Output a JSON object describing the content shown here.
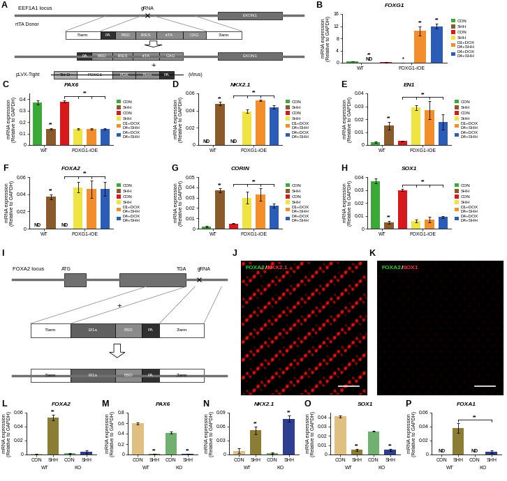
{
  "chart_data": [
    {
      "type": "bar",
      "panel": "B",
      "title": "FOXG1",
      "y_label": "mRNA expression\n(Relative to GAPDH)",
      "categories": [
        "CON",
        "SHH",
        "CON",
        "SHH",
        "D1+DOX\nD4+SHH",
        "D4+DOX\nD4+SHH"
      ],
      "colors": [
        "#3aa935",
        "#8b5a2b",
        "#d7191c",
        "#f0e442",
        "#f28e2b",
        "#2b5cb8"
      ],
      "values": [
        0.38,
        null,
        0.12,
        0.05,
        10.5,
        12.0
      ],
      "errors": [
        0.01,
        null,
        0.02,
        0.01,
        1.5,
        0.8
      ],
      "marks": [
        null,
        [
          "**",
          "ND"
        ],
        null,
        [
          "*"
        ],
        [
          "**"
        ],
        [
          "**"
        ]
      ],
      "groups": [
        {
          "label": "WT",
          "count": 2
        },
        {
          "label": "FOXG1-iOE",
          "count": 4
        }
      ],
      "brackets": [],
      "ylim": [
        0,
        16
      ],
      "yticks": [
        0,
        4,
        8,
        12,
        16
      ],
      "legend": "center left"
    },
    {
      "type": "bar",
      "panel": "C",
      "title": "PAX6",
      "y_label": "mRNA expression\n(Relative to GAPDH)",
      "categories": [
        "CON",
        "SHH",
        "CON",
        "SHH",
        "D1+DOX\nD4+SHH",
        "D4+DOX\nD4+SHH"
      ],
      "colors": [
        "#3aa935",
        "#8b5a2b",
        "#d7191c",
        "#f0e442",
        "#f28e2b",
        "#2b5cb8"
      ],
      "values": [
        0.37,
        0.14,
        0.38,
        0.14,
        0.14,
        0.14
      ],
      "errors": [
        0.02,
        0.005,
        0.01,
        0.004,
        0.006,
        0.004
      ],
      "marks": [
        null,
        [
          "**"
        ],
        null,
        null,
        null,
        null
      ],
      "groups": [
        {
          "label": "WT",
          "count": 2
        },
        {
          "label": "FOXG1-iOE",
          "count": 4
        }
      ],
      "brackets": [
        {
          "from": 2,
          "to": [
            3,
            4,
            5
          ],
          "text": "**"
        }
      ],
      "ylim": [
        0,
        0.45
      ],
      "yticks": [
        0,
        0.1,
        0.2,
        0.3,
        0.4
      ],
      "legend": "center left"
    },
    {
      "type": "bar",
      "panel": "D",
      "title": "NKX2.1",
      "y_label": "mRNA expression\n(Relative to GAPDH)",
      "categories": [
        "CON",
        "SHH",
        "CON",
        "SHH",
        "D1+DOX\nD4+SHH",
        "D4+DOX\nD4+SHH"
      ],
      "colors": [
        "#3aa935",
        "#8b5a2b",
        "#d7191c",
        "#f0e442",
        "#f28e2b",
        "#2b5cb8"
      ],
      "values": [
        null,
        0.048,
        null,
        0.039,
        0.052,
        0.044
      ],
      "errors": [
        null,
        0.002,
        null,
        0.002,
        0.001,
        0.002
      ],
      "marks": [
        [
          "ND"
        ],
        [
          "**"
        ],
        [
          "ND"
        ],
        null,
        null,
        null
      ],
      "groups": [
        {
          "label": "WT",
          "count": 2
        },
        {
          "label": "FOXG1-iOE",
          "count": 4
        }
      ],
      "brackets": [
        {
          "from": 2,
          "to": [
            3,
            4,
            5
          ],
          "text": "**"
        }
      ],
      "ylim": [
        0,
        0.06
      ],
      "yticks": [
        0,
        0.02,
        0.04,
        0.06
      ],
      "legend": "center left"
    },
    {
      "type": "bar",
      "panel": "E",
      "title": "EN1",
      "y_label": "mRNA expression\n(Relative to GAPDH)",
      "categories": [
        "CON",
        "SHH",
        "CON",
        "SHH",
        "D1+DOX\nD4+SHH",
        "D4+DOX\nD4+SHH"
      ],
      "colors": [
        "#3aa935",
        "#8b5a2b",
        "#d7191c",
        "#f0e442",
        "#f28e2b",
        "#2b5cb8"
      ],
      "values": [
        0.002,
        0.015,
        0.003,
        0.029,
        0.027,
        0.018
      ],
      "errors": [
        0.0005,
        0.003,
        0.0005,
        0.002,
        0.007,
        0.006
      ],
      "marks": [
        null,
        [
          "**"
        ],
        null,
        null,
        null,
        null
      ],
      "groups": [
        {
          "label": "WT",
          "count": 2
        },
        {
          "label": "FOXG1-iOE",
          "count": 4
        }
      ],
      "brackets": [
        {
          "from": 2,
          "to": [
            3,
            4,
            5
          ],
          "text": "**"
        }
      ],
      "ylim": [
        0,
        0.04
      ],
      "yticks": [
        0,
        0.01,
        0.02,
        0.03,
        0.04
      ],
      "legend": "center left"
    },
    {
      "type": "bar",
      "panel": "F",
      "title": "FOXA2",
      "y_label": "mRNA expression\n(Relative to GAPDH)",
      "categories": [
        "CON",
        "SHH",
        "CON",
        "SHH",
        "D1+DOX\nD4+SHH",
        "D4+DOX\nD4+SHH"
      ],
      "colors": [
        "#3aa935",
        "#8b5a2b",
        "#d7191c",
        "#f0e442",
        "#f28e2b",
        "#2b5cb8"
      ],
      "values": [
        null,
        0.037,
        null,
        0.048,
        0.046,
        0.046
      ],
      "errors": [
        null,
        0.003,
        null,
        0.006,
        0.01,
        0.008
      ],
      "marks": [
        [
          "ND"
        ],
        [
          "**"
        ],
        [
          "ND"
        ],
        null,
        null,
        null
      ],
      "groups": [
        {
          "label": "WT",
          "count": 2
        },
        {
          "label": "FOXG1-iOE",
          "count": 4
        }
      ],
      "brackets": [
        {
          "from": 2,
          "to": [
            3,
            4,
            5
          ],
          "text": "**"
        }
      ],
      "ylim": [
        0,
        0.06
      ],
      "yticks": [
        0,
        0.02,
        0.04,
        0.06
      ],
      "legend": "center left"
    },
    {
      "type": "bar",
      "panel": "G",
      "title": "CORIN",
      "y_label": "mRNA expression\n(Relative to GAPDH)",
      "categories": [
        "CON",
        "SHH",
        "CON",
        "SHH",
        "D1+DOX\nD4+SHH",
        "D4+DOX\nD4+SHH"
      ],
      "colors": [
        "#3aa935",
        "#8b5a2b",
        "#d7191c",
        "#f0e442",
        "#f28e2b",
        "#2b5cb8"
      ],
      "values": [
        0.002,
        0.037,
        0.005,
        0.03,
        0.033,
        0.022
      ],
      "errors": [
        0.0005,
        0.002,
        0.0003,
        0.006,
        0.006,
        0.002
      ],
      "marks": [
        null,
        [
          "**"
        ],
        null,
        null,
        null,
        null
      ],
      "groups": [
        {
          "label": "WT",
          "count": 2
        },
        {
          "label": "FOXG1-iOE",
          "count": 4
        }
      ],
      "brackets": [
        {
          "from": 2,
          "to": [
            3,
            4,
            5
          ],
          "text": "**"
        }
      ],
      "ylim": [
        0,
        0.05
      ],
      "yticks": [
        0,
        0.01,
        0.02,
        0.03,
        0.04,
        0.05
      ],
      "legend": "center left"
    },
    {
      "type": "bar",
      "panel": "H",
      "title": "SOX1",
      "y_label": "mRNA expression\n(Relative to GAPDH)",
      "categories": [
        "CON",
        "SHH",
        "CON",
        "SHH",
        "D1+DOX\nD4+SHH",
        "D4+DOX\nD4+SHH"
      ],
      "colors": [
        "#3aa935",
        "#8b5a2b",
        "#d7191c",
        "#f0e442",
        "#f28e2b",
        "#2b5cb8"
      ],
      "values": [
        0.037,
        0.005,
        0.03,
        0.006,
        0.007,
        0.009
      ],
      "errors": [
        0.002,
        0.001,
        0.001,
        0.001,
        0.002,
        0.001
      ],
      "marks": [
        null,
        [
          "**"
        ],
        null,
        null,
        null,
        null
      ],
      "groups": [
        {
          "label": "WT",
          "count": 2
        },
        {
          "label": "FOXG1-iOE",
          "count": 4
        }
      ],
      "brackets": [
        {
          "from": 2,
          "to": [
            3,
            4,
            5
          ],
          "text": "**"
        }
      ],
      "ylim": [
        0,
        0.04
      ],
      "yticks": [
        0,
        0.01,
        0.02,
        0.03,
        0.04
      ],
      "legend": "center left"
    },
    {
      "type": "bar",
      "panel": "L",
      "title": "FOXA2",
      "y_label": "mRNA expression\n(Relative to GAPDH)",
      "categories": [
        "CON",
        "SHH",
        "CON",
        "SHH"
      ],
      "colors": [
        "#e0c080",
        "#8b7d35",
        "#70b070",
        "#2f3f8f"
      ],
      "values": [
        0.001,
        0.053,
        0.002,
        0.004
      ],
      "errors": [
        0.0005,
        0.004,
        0.0005,
        0.002
      ],
      "marks": [
        null,
        [
          "**"
        ],
        null,
        null
      ],
      "groups": [
        {
          "label": "WT",
          "count": 2
        },
        {
          "label": "KO",
          "count": 2
        }
      ],
      "brackets": [],
      "ylim": [
        0,
        0.06
      ],
      "yticks": [
        0,
        0.02,
        0.04,
        0.06
      ]
    },
    {
      "type": "bar",
      "panel": "M",
      "title": "PAX6",
      "y_label": "mRNA expression\n(Relative to GAPDH)",
      "categories": [
        "CON",
        "SHH",
        "CON",
        "SHH"
      ],
      "colors": [
        "#e0c080",
        "#8b7d35",
        "#70b070",
        "#2f3f8f"
      ],
      "values": [
        0.6,
        0.01,
        0.42,
        0.01
      ],
      "errors": [
        0.02,
        0.003,
        0.02,
        0.003
      ],
      "marks": [
        null,
        [
          "**"
        ],
        null,
        [
          "**"
        ]
      ],
      "groups": [
        {
          "label": "WT",
          "count": 2
        },
        {
          "label": "KO",
          "count": 2
        }
      ],
      "brackets": [],
      "ylim": [
        0,
        0.8
      ],
      "yticks": [
        0,
        0.2,
        0.4,
        0.6,
        0.8
      ]
    },
    {
      "type": "bar",
      "panel": "N",
      "title": "NKX2.1",
      "y_label": "mRNA expression\n(Relative to GAPDH)",
      "categories": [
        "CON",
        "SHH",
        "CON",
        "SHH"
      ],
      "colors": [
        "#e0c080",
        "#8b7d35",
        "#70b070",
        "#2f3f8f"
      ],
      "values": [
        0.008,
        0.052,
        0.003,
        0.077
      ],
      "errors": [
        0.005,
        0.008,
        0.002,
        0.007
      ],
      "marks": [
        null,
        [
          "**"
        ],
        null,
        [
          "**"
        ]
      ],
      "groups": [
        {
          "label": "WT",
          "count": 2
        },
        {
          "label": "KO",
          "count": 2
        }
      ],
      "brackets": [],
      "ylim": [
        0,
        0.09
      ],
      "yticks": [
        0,
        0.03,
        0.06,
        0.09
      ]
    },
    {
      "type": "bar",
      "panel": "O",
      "title": "SOX1",
      "y_label": "mRNA expression\n(Relative to GAPDH)",
      "categories": [
        "CON",
        "SHH",
        "CON",
        "SHH"
      ],
      "colors": [
        "#e0c080",
        "#8b7d35",
        "#70b070",
        "#2f3f8f"
      ],
      "values": [
        0.041,
        0.005,
        0.025,
        0.005
      ],
      "errors": [
        0.001,
        0.001,
        0.0005,
        0.001
      ],
      "marks": [
        null,
        [
          "**"
        ],
        null,
        [
          "**"
        ]
      ],
      "groups": [
        {
          "label": "WT",
          "count": 2
        },
        {
          "label": "KO",
          "count": 2
        }
      ],
      "brackets": [],
      "ylim": [
        0,
        0.045
      ],
      "yticks": [
        0,
        0.01,
        0.02,
        0.03,
        0.04
      ]
    },
    {
      "type": "bar",
      "panel": "P",
      "title": "FOXA1",
      "y_label": "mRNA expression\n(Relative to GAPDH)",
      "categories": [
        "CON",
        "SHH",
        "CON",
        "SHH"
      ],
      "colors": [
        "#e0c080",
        "#8b7d35",
        "#70b070",
        "#2f3f8f"
      ],
      "values": [
        null,
        0.038,
        null,
        0.004
      ],
      "errors": [
        null,
        0.007,
        null,
        0.002
      ],
      "marks": [
        [
          "ND"
        ],
        null,
        [
          "ND"
        ],
        null
      ],
      "groups": [
        {
          "label": "WT",
          "count": 2
        },
        {
          "label": "KO",
          "count": 2
        }
      ],
      "brackets": [
        {
          "from": 1,
          "to": [
            3
          ],
          "text": "**"
        }
      ],
      "ylim": [
        0,
        0.06
      ],
      "yticks": [
        0,
        0.02,
        0.04,
        0.06
      ]
    }
  ],
  "diagrams": [
    {
      "type": "diagram",
      "panel": "A",
      "locus": "EEF1A1 locus",
      "grna": "gRNA",
      "exon": "EXON1",
      "donor": "rtTA Donor",
      "donor_parts": [
        "5'arm",
        "PA",
        "BSD",
        "IRES",
        "rtTA",
        "CAG",
        "3'arm"
      ],
      "result_parts": [
        "PA",
        "BSD",
        "IRES",
        "rtTA",
        "CAG"
      ],
      "plus": "+",
      "virus_name": "pLVX-Tight",
      "virus_parts": [
        "Tet-O",
        "FOXG1",
        "PGK",
        "Puro",
        "PA"
      ],
      "virus_label": "(Virus)"
    },
    {
      "type": "diagram",
      "panel": "I",
      "locus": "FOXA2 locus",
      "start": "ATG",
      "stop": "TGA",
      "grna": "gRNA",
      "plus": "+",
      "parts": [
        "5'arm",
        "Ef1a",
        "BSD",
        "PA",
        "3'arm"
      ]
    }
  ],
  "images": [
    {
      "type": "image",
      "panel": "J",
      "label_parts": [
        {
          "text": "FOXA2",
          "color": "#30d030"
        },
        {
          "text": "/",
          "color": "#ffffff"
        },
        {
          "text": "NKX2.1",
          "color": "#ff3030"
        }
      ]
    },
    {
      "type": "image",
      "panel": "K",
      "label_parts": [
        {
          "text": "FOXA2",
          "color": "#30d030"
        },
        {
          "text": "/",
          "color": "#ffffff"
        },
        {
          "text": "SOX1",
          "color": "#ff3030"
        }
      ]
    }
  ]
}
